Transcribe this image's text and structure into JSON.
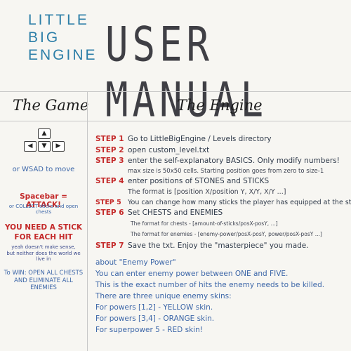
{
  "logo": {
    "line1": "LITTLE",
    "line2": "BIG",
    "line3": "ENGINE"
  },
  "title": "USER MANUAL",
  "sections": {
    "game": "The Game",
    "engine": "The Engine"
  },
  "game": {
    "keys": {
      "up": "▲",
      "left": "◀",
      "down": "▼",
      "right": "▶"
    },
    "move_text": "or WSAD to move",
    "spacebar": "Spacebar = ATTACK!",
    "collect": "or COLLECT sticks and open chests",
    "need_stick_1": "YOU NEED A STICK",
    "need_stick_2": "FOR EACH HIT",
    "note_1": "yeah doesn't make sense,",
    "note_2": "but neither does the world we live in",
    "win_1": "To WIN: OPEN ALL CHESTS",
    "win_2": "AND ELIMINATE ALL ENEMIES"
  },
  "steps": [
    {
      "tag": "STEP 1",
      "text": "Go to LittleBigEngine / Levels directory"
    },
    {
      "tag": "STEP 2",
      "text": "open custom_level.txt"
    },
    {
      "tag": "STEP 3",
      "text": "enter the self-explanatory BASICS. Only modify numbers!"
    },
    {
      "tag": "",
      "text": "max size is 50x50 cells. Starting position goes from zero to size-1"
    },
    {
      "tag": "STEP 4",
      "text": "enter positions of STONES and STICKS"
    },
    {
      "tag": "",
      "text": "The format is [position X/position Y, X/Y, X/Y ...]"
    },
    {
      "tag": "STEP 5",
      "text": "You can change how many sticks the player has equipped at the start"
    },
    {
      "tag": "STEP 6",
      "text": "Set CHESTS and ENEMIES"
    },
    {
      "tag": "",
      "text": "The format for chests - [amount-of-sticks/posX-posY, ...]"
    },
    {
      "tag": "",
      "text": "The format for enemies - [enemy-power/posX-posY, power/posX-posY ...]"
    },
    {
      "tag": "STEP 7",
      "text": "Save the txt. Enjoy the \"masterpiece\" you made."
    }
  ],
  "about": {
    "heading": "about \"Enemy Power\"",
    "lines": [
      "You can enter enemy power between ONE and FIVE.",
      "This is the exact number of hits the enemy needs to be killed.",
      "There are three unique enemy skins:",
      "For powers [1,2] - YELLOW skin.",
      "For powers [3,4] - ORANGE skin.",
      "For superpower 5 - RED skin!"
    ]
  }
}
